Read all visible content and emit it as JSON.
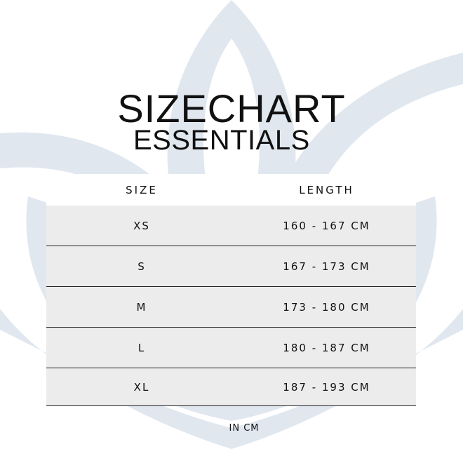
{
  "title": "SIZECHART",
  "subtitle": "ESSENTIALS",
  "table": {
    "headers": [
      "SIZE",
      "LENGTH"
    ],
    "rows": [
      [
        "XS",
        "160 - 167 CM"
      ],
      [
        "S",
        "167 - 173 CM"
      ],
      [
        "M",
        "173 - 180 CM"
      ],
      [
        "L",
        "180 - 187 CM"
      ],
      [
        "XL",
        "187 - 193 CM"
      ]
    ]
  },
  "footnote": "IN CM",
  "colors": {
    "row_bg": "#ececec",
    "watermark": "#e0e7ef"
  },
  "watermark_icon": "lotus-icon"
}
